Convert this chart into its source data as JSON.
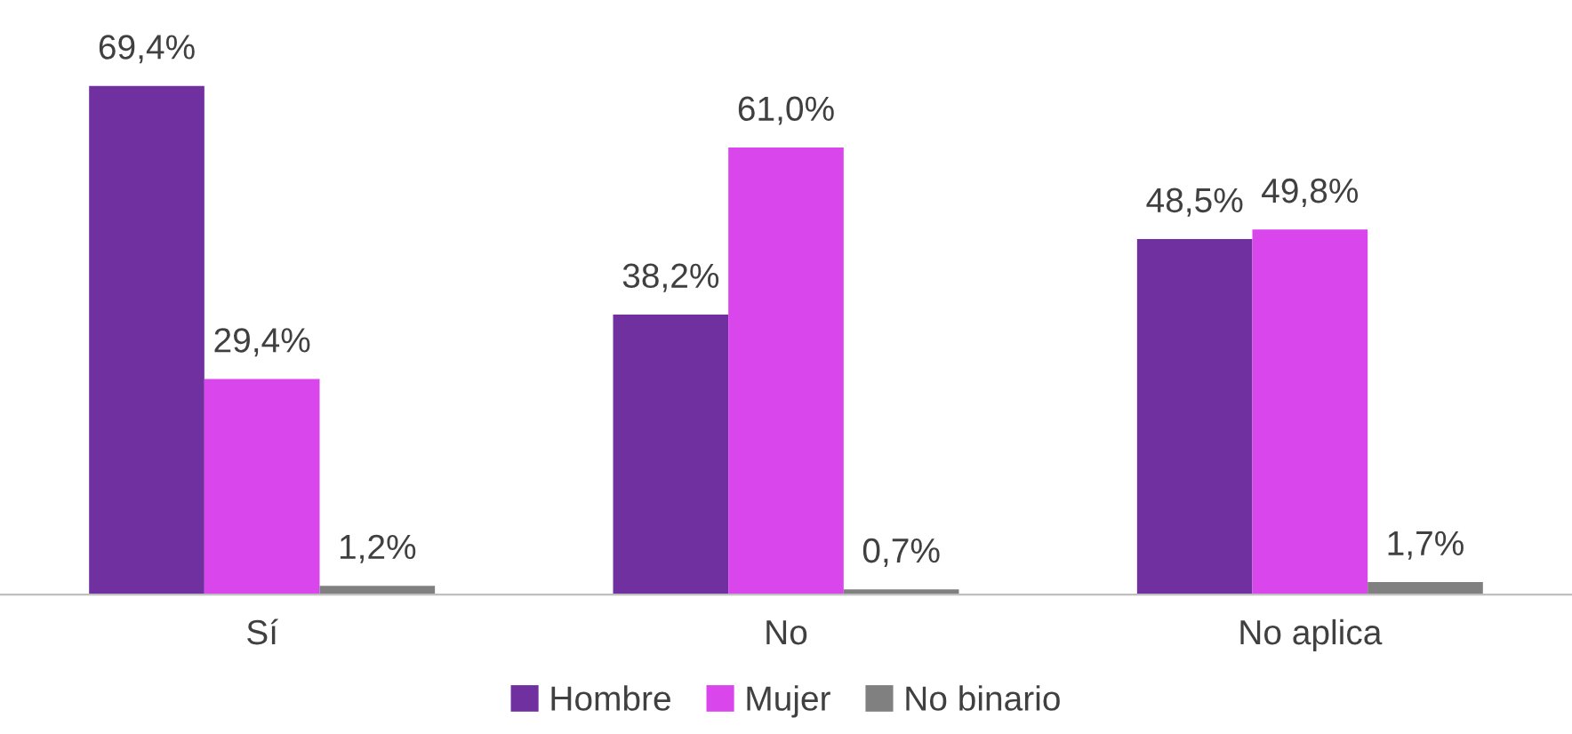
{
  "chart_data": {
    "type": "bar",
    "categories": [
      "Sí",
      "No",
      "No aplica"
    ],
    "series": [
      {
        "name": "Hombre",
        "color": "#7030a0",
        "values": [
          69.4,
          38.2,
          48.5
        ],
        "value_labels": [
          "69,4%",
          "38,2%",
          "48,5%"
        ]
      },
      {
        "name": "Mujer",
        "color": "#d946ec",
        "values": [
          29.4,
          61.0,
          49.8
        ],
        "value_labels": [
          "29,4%",
          "61,0%",
          "49,8%"
        ]
      },
      {
        "name": "No binario",
        "color": "#808080",
        "values": [
          1.2,
          0.7,
          1.7
        ],
        "value_labels": [
          "1,2%",
          "0,7%",
          "1,7%"
        ]
      }
    ],
    "legend": "bottom"
  }
}
